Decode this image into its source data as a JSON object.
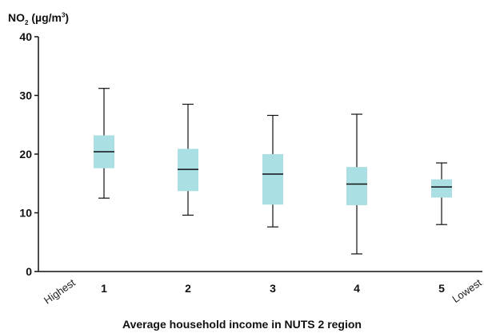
{
  "chart_data": {
    "type": "box",
    "ylabel_prefix": "NO",
    "ylabel_sub": "2",
    "ylabel_mid": " (µg/m",
    "ylabel_sup": "3",
    "ylabel_suffix": ")",
    "xlabel": "Average household income in NUTS 2 region",
    "ylim": [
      0,
      40
    ],
    "yticks": [
      0,
      10,
      20,
      30,
      40
    ],
    "grid": false,
    "categories": [
      "1",
      "2",
      "3",
      "4",
      "5"
    ],
    "x_start_label": "Highest",
    "x_end_label": "Lowest",
    "box_color": "#aadfe3",
    "boxes": [
      {
        "category": "1",
        "min": 12.5,
        "q1": 17.6,
        "median": 20.4,
        "q3": 23.2,
        "max": 31.2
      },
      {
        "category": "2",
        "min": 9.6,
        "q1": 13.7,
        "median": 17.4,
        "q3": 20.9,
        "max": 28.5
      },
      {
        "category": "3",
        "min": 7.6,
        "q1": 11.4,
        "median": 16.6,
        "q3": 20.0,
        "max": 26.6
      },
      {
        "category": "4",
        "min": 3.0,
        "q1": 11.3,
        "median": 14.9,
        "q3": 17.8,
        "max": 26.8
      },
      {
        "category": "5",
        "min": 8.0,
        "q1": 12.6,
        "median": 14.4,
        "q3": 15.7,
        "max": 18.5
      }
    ]
  }
}
